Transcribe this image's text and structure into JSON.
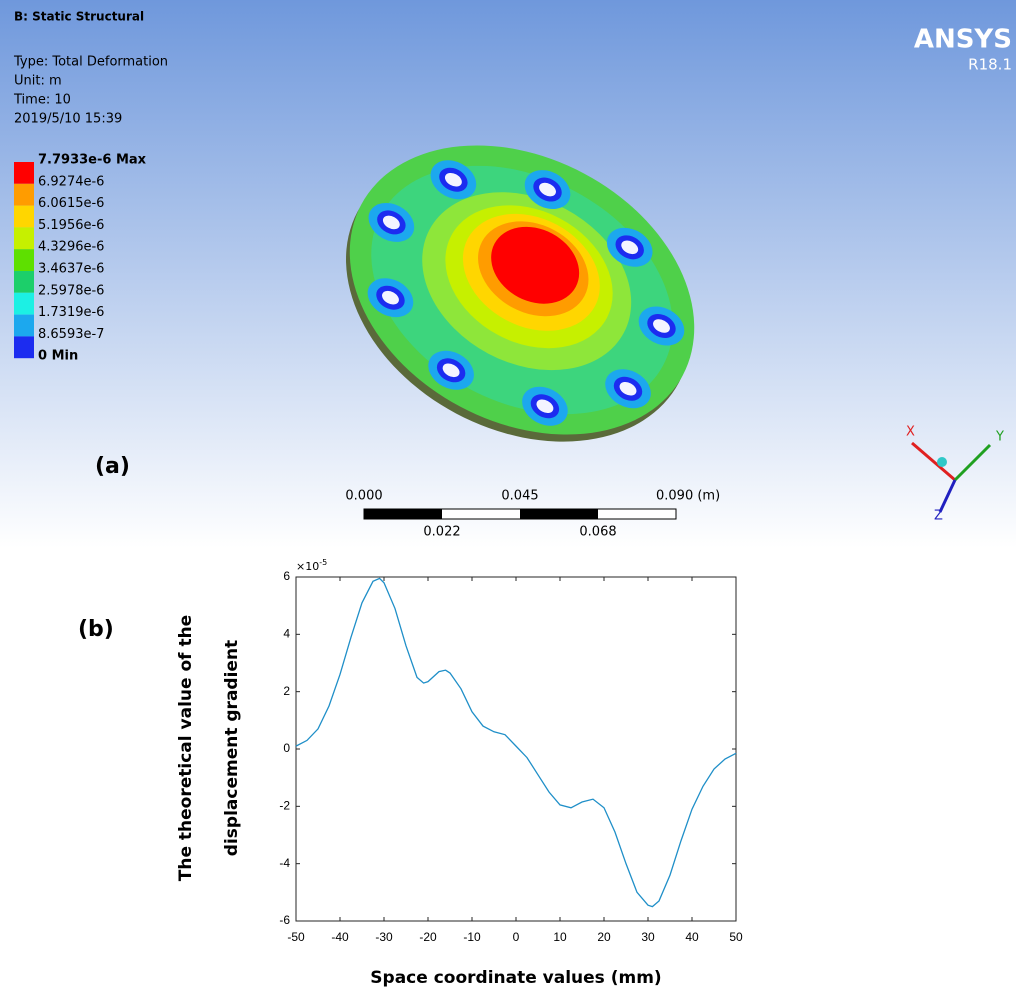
{
  "panel_a": {
    "label": "(a)",
    "title": "B: Static Structural",
    "info": [
      "Type: Total Deformation",
      "Unit: m",
      "Time: 10",
      "2019/5/10 15:39"
    ],
    "legend": [
      "7.7933e-6 Max",
      "6.9274e-6",
      "6.0615e-6",
      "5.1956e-6",
      "4.3296e-6",
      "3.4637e-6",
      "2.5978e-6",
      "1.7319e-6",
      "8.6593e-7",
      "0 Min"
    ],
    "band_colors": [
      "#ff0000",
      "#ff9c00",
      "#ffd600",
      "#c6f000",
      "#5ee000",
      "#1ccf6a",
      "#1cf0e4",
      "#1ca8ee",
      "#1c2cf0"
    ],
    "brand": "ANSYS",
    "version": "R18.1",
    "scale_top": [
      "0.000",
      "0.045",
      "0.090 (m)"
    ],
    "scale_bottom": [
      "0.022",
      "0.068"
    ],
    "triad": [
      "X",
      "Y",
      "Z"
    ]
  },
  "chart_data": {
    "type": "line",
    "panel_label": "(b)",
    "xlabel": "Space coordinate values (mm)",
    "ylabel": [
      "The theoretical value of the",
      "displacement gradient"
    ],
    "y_multiplier": "×10",
    "y_exponent": "-5",
    "x": [
      -50,
      -47.5,
      -45,
      -42.5,
      -40,
      -37.5,
      -35,
      -32.5,
      -31,
      -30,
      -27.5,
      -25,
      -22.5,
      -21,
      -20,
      -17.5,
      -16,
      -15,
      -12.5,
      -10,
      -7.5,
      -5,
      -2.5,
      0,
      2.5,
      5,
      7.5,
      10,
      12.5,
      15,
      17.5,
      20,
      22.5,
      25,
      27.5,
      30,
      31,
      32.5,
      35,
      37.5,
      40,
      42.5,
      45,
      47.5,
      50
    ],
    "series": [
      {
        "color": "#1f8fc8",
        "values": [
          0.1,
          0.3,
          0.7,
          1.5,
          2.6,
          3.9,
          5.1,
          5.85,
          5.95,
          5.8,
          4.9,
          3.6,
          2.5,
          2.3,
          2.35,
          2.7,
          2.75,
          2.65,
          2.1,
          1.3,
          0.8,
          0.6,
          0.5,
          0.1,
          -0.3,
          -0.9,
          -1.5,
          -1.95,
          -2.05,
          -1.85,
          -1.75,
          -2.05,
          -2.9,
          -4.0,
          -5.0,
          -5.45,
          -5.5,
          -5.3,
          -4.4,
          -3.2,
          -2.1,
          -1.3,
          -0.7,
          -0.35,
          -0.15
        ]
      }
    ],
    "xlim": [
      -50,
      50
    ],
    "xticks": [
      -50,
      -40,
      -30,
      -20,
      -10,
      0,
      10,
      20,
      30,
      40,
      50
    ],
    "ylim": [
      -6,
      6
    ],
    "yticks": [
      -6,
      -4,
      -2,
      0,
      2,
      4,
      6
    ]
  }
}
